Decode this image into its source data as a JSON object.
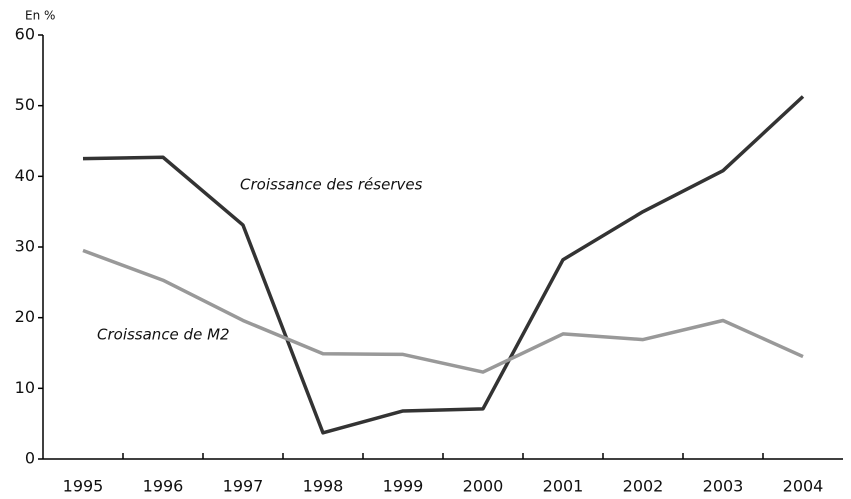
{
  "chart_data": {
    "type": "line",
    "y_axis_label": "En %",
    "categories": [
      "1995",
      "1996",
      "1997",
      "1998",
      "1999",
      "2000",
      "2001",
      "2002",
      "2003",
      "2004"
    ],
    "series": [
      {
        "name": "Croissance  des réserves",
        "color": "#333333",
        "values": [
          42.5,
          42.7,
          33.1,
          3.7,
          6.8,
          7.1,
          28.2,
          35,
          40.8,
          51.3
        ]
      },
      {
        "name": "Croissance de M2",
        "color": "#999999",
        "values": [
          29.5,
          25.3,
          19.6,
          14.9,
          14.8,
          12.3,
          17.7,
          16.9,
          19.6,
          14.5
        ]
      }
    ],
    "ylim": [
      0,
      60
    ],
    "yticks": [
      0,
      10,
      20,
      30,
      40,
      50,
      60
    ],
    "grid": false
  }
}
